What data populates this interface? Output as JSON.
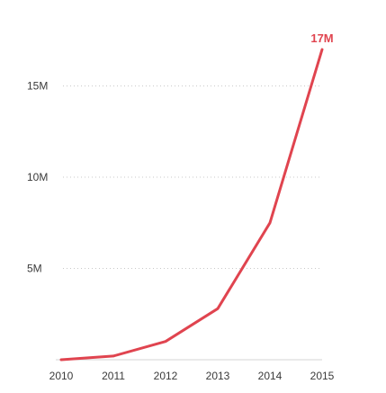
{
  "chart_data": {
    "type": "line",
    "x": [
      "2010",
      "2011",
      "2012",
      "2013",
      "2014",
      "2015"
    ],
    "series": [
      {
        "values": [
          0.0,
          0.2,
          1.0,
          2.8,
          7.5,
          17.0
        ]
      }
    ],
    "ylim": [
      0,
      17
    ],
    "yticks": [
      5,
      10,
      15
    ],
    "ytick_labels": [
      "5M",
      "10M",
      "15M"
    ],
    "grid": true,
    "end_label": "17M",
    "line_color": "#e0444f",
    "title": "",
    "xlabel": "",
    "ylabel": ""
  }
}
